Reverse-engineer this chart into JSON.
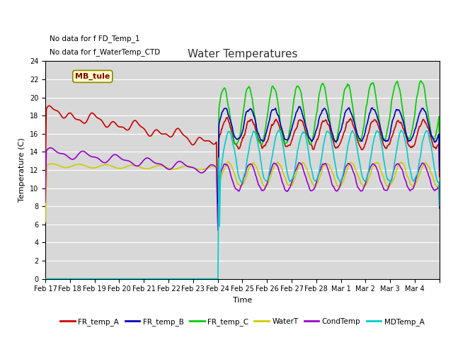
{
  "title": "Water Temperatures",
  "xlabel": "Time",
  "ylabel": "Temperature (C)",
  "ylim": [
    0,
    24
  ],
  "yticks": [
    0,
    2,
    4,
    6,
    8,
    10,
    12,
    14,
    16,
    18,
    20,
    22,
    24
  ],
  "plot_bg_color": "#d8d8d8",
  "fig_bg_color": "#ffffff",
  "annotations": [
    "No data for f FD_Temp_1",
    "No data for f_WaterTemp_CTD"
  ],
  "mb_tule_label": "MB_tule",
  "legend_entries": [
    "FR_temp_A",
    "FR_temp_B",
    "FR_temp_C",
    "WaterT",
    "CondTemp",
    "MDTemp_A"
  ],
  "legend_colors": [
    "#cc0000",
    "#0000bb",
    "#00cc00",
    "#cccc00",
    "#9900cc",
    "#00cccc"
  ],
  "line_width": 1.2,
  "tick_labels": [
    "Feb 17",
    "Feb 18",
    "Feb 19",
    "Feb 20",
    "Feb 21",
    "Feb 22",
    "Feb 23",
    "Feb 24",
    "Feb 25",
    "Feb 26",
    "Feb 27",
    "Feb 28",
    "Mar 1",
    "Mar 2",
    "Mar 3",
    "Mar 4"
  ]
}
